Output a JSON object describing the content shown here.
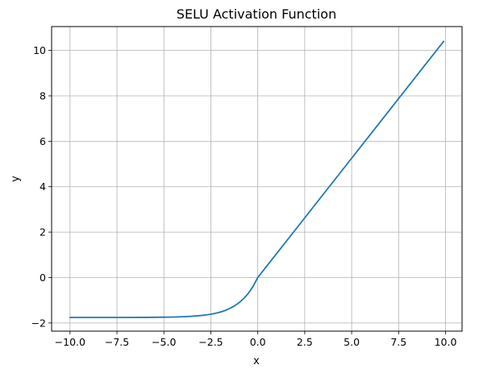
{
  "chart_data": {
    "type": "line",
    "title": "SELU Activation Function",
    "xlabel": "x",
    "ylabel": "y",
    "xlim": [
      -10.98,
      10.88
    ],
    "ylim": [
      -2.36,
      11.05
    ],
    "grid": true,
    "x_ticks": [
      -10,
      -7.5,
      -5,
      -2.5,
      0,
      2.5,
      5,
      7.5,
      10
    ],
    "x_tick_labels": [
      "−10.0",
      "−7.5",
      "−5.0",
      "−2.5",
      "0.0",
      "2.5",
      "5.0",
      "7.5",
      "10.0"
    ],
    "y_ticks": [
      -2,
      0,
      2,
      4,
      6,
      8,
      10
    ],
    "y_tick_labels": [
      "−2",
      "0",
      "2",
      "4",
      "6",
      "8",
      "10"
    ],
    "series": [
      {
        "color": "#1f77b4",
        "x": [
          -10,
          -9,
          -8,
          -7,
          -6,
          -5,
          -4.5,
          -4,
          -3.5,
          -3,
          -2.75,
          -2.5,
          -2.25,
          -2,
          -1.75,
          -1.5,
          -1.25,
          -1,
          -0.75,
          -0.5,
          -0.25,
          0,
          1,
          2,
          3,
          4,
          5,
          6,
          7,
          8,
          9,
          9.9
        ],
        "y": [
          -1.758,
          -1.758,
          -1.758,
          -1.757,
          -1.754,
          -1.746,
          -1.739,
          -1.726,
          -1.705,
          -1.67,
          -1.646,
          -1.614,
          -1.574,
          -1.521,
          -1.455,
          -1.366,
          -1.254,
          -1.111,
          -0.928,
          -0.691,
          -0.389,
          0,
          1.051,
          2.101,
          3.152,
          4.203,
          5.254,
          6.304,
          7.355,
          8.406,
          9.456,
          10.402
        ]
      }
    ]
  }
}
